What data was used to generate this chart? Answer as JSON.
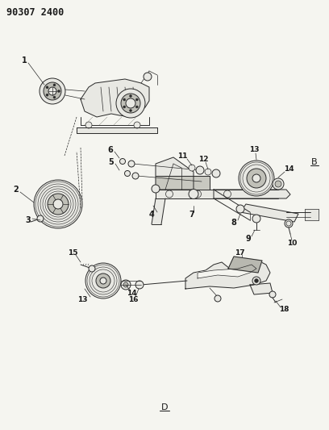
{
  "title": "90307 2400",
  "bg_color": "#f5f5f0",
  "line_color": "#2a2a2a",
  "text_color": "#1a1a1a",
  "fig_width": 4.08,
  "fig_height": 5.33,
  "dpi": 100,
  "page_label": "D",
  "bottom_label": "D",
  "gray_fill": "#d0d0c8",
  "light_gray": "#e8e8e3"
}
